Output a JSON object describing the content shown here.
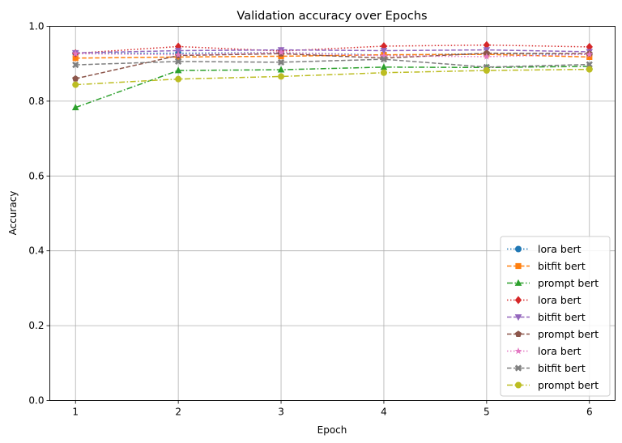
{
  "chart_data": {
    "type": "line",
    "title": "Validation accuracy over Epochs",
    "xlabel": "Epoch",
    "ylabel": "Accuracy",
    "x": [
      1,
      2,
      3,
      4,
      5,
      6
    ],
    "xlim": [
      0.75,
      6.25
    ],
    "ylim": [
      0.0,
      1.0
    ],
    "x_ticks": [
      1,
      2,
      3,
      4,
      5,
      6
    ],
    "y_ticks": [
      0.0,
      0.2,
      0.4,
      0.6,
      0.8,
      1.0
    ],
    "y_tick_labels": [
      "0.0",
      "0.2",
      "0.4",
      "0.6",
      "0.8",
      "1.0"
    ],
    "grid": true,
    "legend_position": "lower-right",
    "series": [
      {
        "name": "lora bert",
        "color": "#1f77b4",
        "marker": "circle",
        "linestyle": "dotted",
        "values": [
          0.928,
          0.928,
          0.93,
          0.923,
          0.927,
          0.925
        ]
      },
      {
        "name": "bitfit bert",
        "color": "#ff7f0e",
        "marker": "square",
        "linestyle": "dashed",
        "values": [
          0.915,
          0.918,
          0.92,
          0.924,
          0.925,
          0.918
        ]
      },
      {
        "name": "prompt bert",
        "color": "#2ca02c",
        "marker": "triangle-up",
        "linestyle": "dashdot",
        "values": [
          0.783,
          0.882,
          0.884,
          0.891,
          0.89,
          0.893
        ]
      },
      {
        "name": "lora bert",
        "color": "#d62728",
        "marker": "diamond",
        "linestyle": "dotted",
        "values": [
          0.928,
          0.946,
          0.934,
          0.947,
          0.95,
          0.945
        ]
      },
      {
        "name": "bitfit bert",
        "color": "#9467bd",
        "marker": "triangle-down",
        "linestyle": "dashed",
        "values": [
          0.929,
          0.935,
          0.937,
          0.935,
          0.937,
          0.932
        ]
      },
      {
        "name": "prompt bert",
        "color": "#8c564b",
        "marker": "pentagon",
        "linestyle": "dashed",
        "values": [
          0.86,
          0.922,
          0.927,
          0.915,
          0.928,
          0.927
        ]
      },
      {
        "name": "lora bert",
        "color": "#e377c2",
        "marker": "star",
        "linestyle": "dotted",
        "values": [
          0.927,
          0.924,
          0.93,
          0.921,
          0.919,
          0.925
        ]
      },
      {
        "name": "bitfit bert",
        "color": "#7f7f7f",
        "marker": "x",
        "linestyle": "dashed",
        "values": [
          0.897,
          0.906,
          0.904,
          0.912,
          0.891,
          0.898
        ]
      },
      {
        "name": "prompt bert",
        "color": "#bcbd22",
        "marker": "circle",
        "linestyle": "dashdot",
        "values": [
          0.844,
          0.859,
          0.866,
          0.876,
          0.882,
          0.885
        ]
      }
    ]
  }
}
